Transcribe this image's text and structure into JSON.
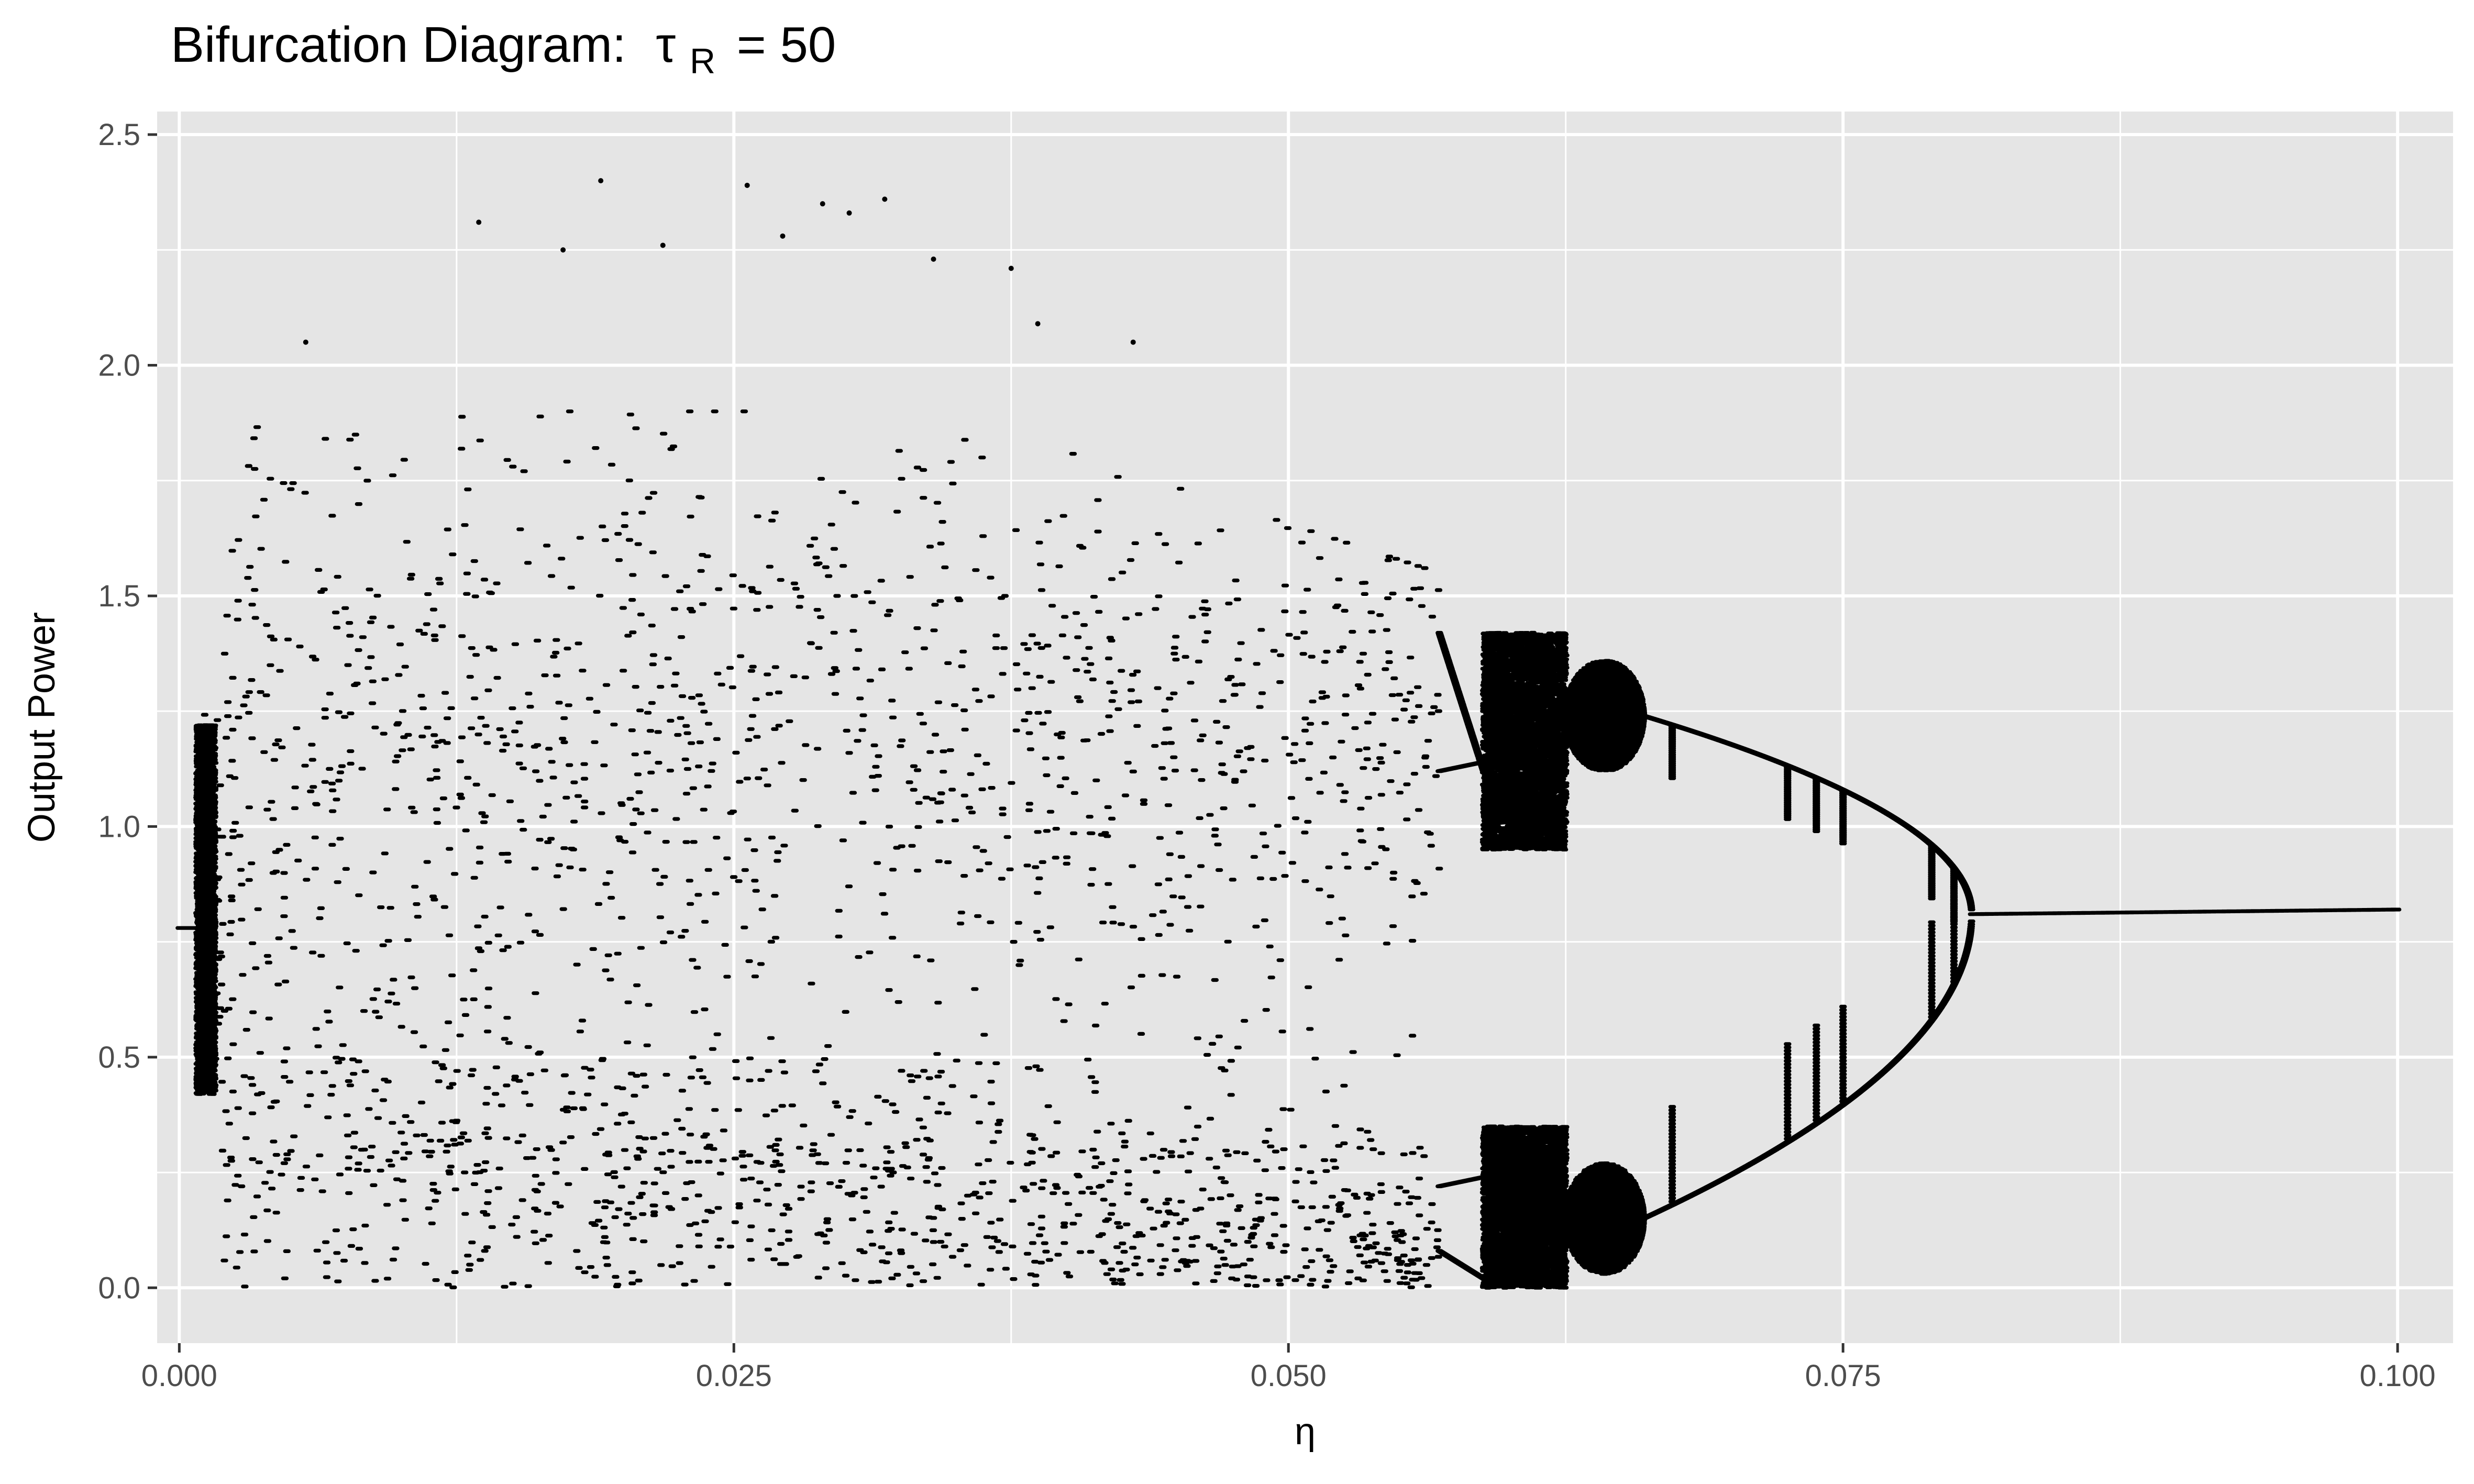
{
  "chart_data": {
    "type": "scatter",
    "title": {
      "prefix": "Bifurcation Diagram:",
      "symbol": "τ",
      "subscript": "R",
      "suffix": "= 50"
    },
    "xlabel": "η",
    "ylabel": "Output Power",
    "xlim": [
      -0.001,
      0.1025
    ],
    "ylim": [
      -0.12,
      2.55
    ],
    "x_ticks": [
      {
        "value": 0.0,
        "label": "0.000"
      },
      {
        "value": 0.025,
        "label": "0.025"
      },
      {
        "value": 0.05,
        "label": "0.050"
      },
      {
        "value": 0.075,
        "label": "0.075"
      },
      {
        "value": 0.1,
        "label": "0.100"
      }
    ],
    "y_ticks": [
      {
        "value": 0.0,
        "label": "0.0"
      },
      {
        "value": 0.5,
        "label": "0.5"
      },
      {
        "value": 1.0,
        "label": "1.0"
      },
      {
        "value": 1.5,
        "label": "1.5"
      },
      {
        "value": 2.0,
        "label": "2.0"
      },
      {
        "value": 2.5,
        "label": "2.5"
      }
    ],
    "grid": true,
    "background": "#e5e5e5",
    "grid_color": "#ffffff",
    "point_color": "#000000",
    "regions": [
      {
        "kind": "fixed_point",
        "x_range": [
          0.0,
          0.0008
        ],
        "y": 0.78
      },
      {
        "kind": "chaotic_band",
        "x_range": [
          0.0008,
          0.0568
        ],
        "y_range": [
          0.0,
          2.4
        ],
        "upper_band_center": 1.2,
        "lower_band_center": 0.25
      },
      {
        "kind": "period_2_window",
        "x_range": [
          0.0568,
          0.0588
        ],
        "branches": [
          1.42,
          0.08
        ]
      },
      {
        "kind": "chaotic_band",
        "x_range": [
          0.0588,
          0.0625
        ],
        "upper_band": [
          0.95,
          1.42
        ],
        "lower_band": [
          0.0,
          0.35
        ]
      },
      {
        "kind": "chaotic_lobes",
        "x_range": [
          0.0625,
          0.066
        ],
        "upper_center": 1.24,
        "lower_center": 0.15
      },
      {
        "kind": "period_2_branch",
        "x_range": [
          0.066,
          0.0808
        ],
        "upper_y": [
          1.24,
          0.81
        ],
        "lower_y": [
          0.15,
          0.81
        ]
      },
      {
        "kind": "fixed_point",
        "x_range": [
          0.0808,
          0.1
        ],
        "y_range": [
          0.81,
          0.82
        ]
      }
    ],
    "outliers": [
      {
        "x": 0.0057,
        "y": 2.05
      },
      {
        "x": 0.0135,
        "y": 2.31
      },
      {
        "x": 0.0173,
        "y": 2.25
      },
      {
        "x": 0.019,
        "y": 2.4
      },
      {
        "x": 0.0218,
        "y": 2.26
      },
      {
        "x": 0.0256,
        "y": 2.39
      },
      {
        "x": 0.0272,
        "y": 2.28
      },
      {
        "x": 0.029,
        "y": 2.35
      },
      {
        "x": 0.0302,
        "y": 2.33
      },
      {
        "x": 0.0318,
        "y": 2.36
      },
      {
        "x": 0.034,
        "y": 2.23
      },
      {
        "x": 0.0375,
        "y": 2.21
      },
      {
        "x": 0.0387,
        "y": 2.09
      },
      {
        "x": 0.043,
        "y": 2.05
      }
    ]
  }
}
